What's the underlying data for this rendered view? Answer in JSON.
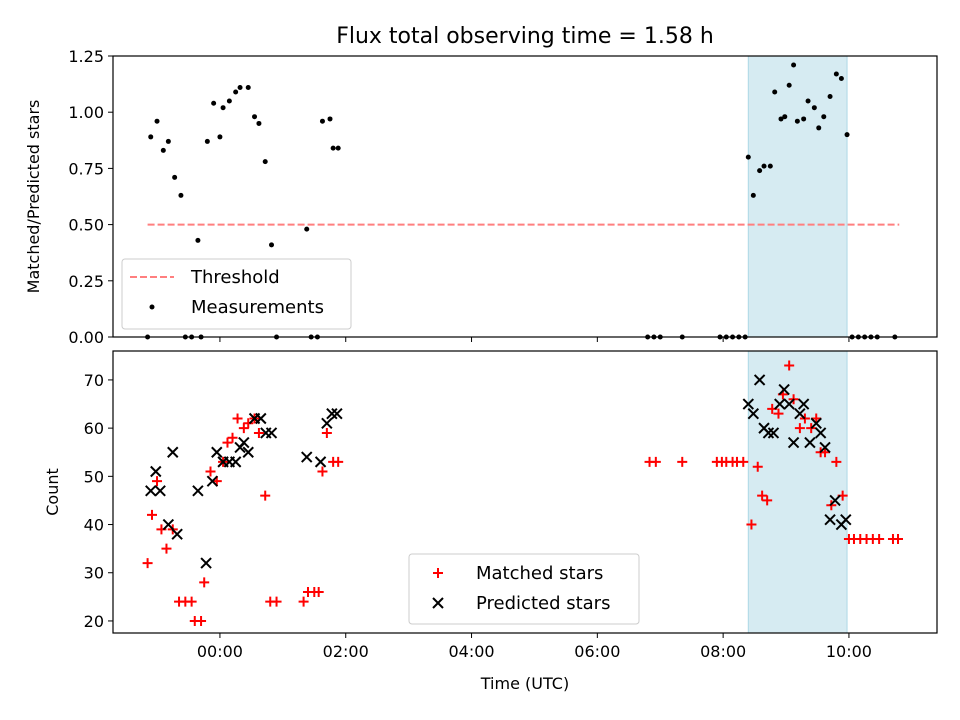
{
  "chart_data": [
    {
      "type": "scatter",
      "title": "Flux total observing time = 1.58 h",
      "ylabel": "Matched/Predicted stars",
      "xlabel": "",
      "x_unit": "hours (UTC), negative = before 00:00",
      "xlim": [
        -1.7,
        11.4
      ],
      "ylim": [
        0.0,
        1.25
      ],
      "yticks": [
        "0.00",
        "0.25",
        "0.50",
        "0.75",
        "1.00",
        "1.25"
      ],
      "threshold": {
        "name": "Threshold",
        "value": 0.5,
        "x_range": [
          -1.15,
          10.8
        ],
        "color": "#ff7f7f"
      },
      "highlight_span": [
        8.4,
        9.97
      ],
      "legend_position": "lower-left",
      "series": [
        {
          "name": "Measurements",
          "color": "#000000",
          "points": [
            [
              -1.15,
              0.0
            ],
            [
              -1.1,
              0.89
            ],
            [
              -1.0,
              0.96
            ],
            [
              -0.9,
              0.83
            ],
            [
              -0.82,
              0.87
            ],
            [
              -0.72,
              0.71
            ],
            [
              -0.62,
              0.63
            ],
            [
              -0.55,
              0.0
            ],
            [
              -0.45,
              0.0
            ],
            [
              -0.35,
              0.43
            ],
            [
              -0.3,
              0.0
            ],
            [
              -0.2,
              0.87
            ],
            [
              -0.1,
              1.04
            ],
            [
              0.0,
              0.89
            ],
            [
              0.05,
              1.02
            ],
            [
              0.15,
              1.05
            ],
            [
              0.25,
              1.09
            ],
            [
              0.32,
              1.11
            ],
            [
              0.45,
              1.11
            ],
            [
              0.55,
              0.98
            ],
            [
              0.62,
              0.95
            ],
            [
              0.72,
              0.78
            ],
            [
              0.82,
              0.41
            ],
            [
              0.9,
              0.0
            ],
            [
              1.38,
              0.48
            ],
            [
              1.45,
              0.0
            ],
            [
              1.55,
              0.0
            ],
            [
              1.63,
              0.96
            ],
            [
              1.75,
              0.97
            ],
            [
              1.8,
              0.84
            ],
            [
              1.88,
              0.84
            ],
            [
              6.8,
              0.0
            ],
            [
              6.9,
              0.0
            ],
            [
              7.0,
              0.0
            ],
            [
              7.35,
              0.0
            ],
            [
              7.95,
              0.0
            ],
            [
              8.05,
              0.0
            ],
            [
              8.15,
              0.0
            ],
            [
              8.25,
              0.0
            ],
            [
              8.35,
              0.0
            ],
            [
              8.4,
              0.8
            ],
            [
              8.48,
              0.63
            ],
            [
              8.58,
              0.74
            ],
            [
              8.65,
              0.76
            ],
            [
              8.75,
              0.76
            ],
            [
              8.82,
              1.09
            ],
            [
              8.92,
              0.97
            ],
            [
              8.98,
              0.98
            ],
            [
              9.05,
              1.12
            ],
            [
              9.12,
              1.21
            ],
            [
              9.18,
              0.96
            ],
            [
              9.28,
              0.97
            ],
            [
              9.35,
              1.05
            ],
            [
              9.45,
              1.02
            ],
            [
              9.52,
              0.93
            ],
            [
              9.6,
              0.98
            ],
            [
              9.7,
              1.07
            ],
            [
              9.8,
              1.17
            ],
            [
              9.88,
              1.15
            ],
            [
              9.97,
              0.9
            ],
            [
              10.05,
              0.0
            ],
            [
              10.15,
              0.0
            ],
            [
              10.25,
              0.0
            ],
            [
              10.35,
              0.0
            ],
            [
              10.45,
              0.0
            ],
            [
              10.73,
              0.0
            ]
          ]
        }
      ]
    },
    {
      "type": "scatter",
      "title": "",
      "ylabel": "Count",
      "xlabel": "Time (UTC)",
      "x_unit": "hours (UTC), negative = before 00:00",
      "xlim": [
        -1.7,
        11.4
      ],
      "ylim": [
        17.5,
        76
      ],
      "yticks": [
        "20",
        "30",
        "40",
        "50",
        "60",
        "70"
      ],
      "xticks": [
        {
          "value": 0,
          "label": "00:00"
        },
        {
          "value": 2,
          "label": "02:00"
        },
        {
          "value": 4,
          "label": "04:00"
        },
        {
          "value": 6,
          "label": "06:00"
        },
        {
          "value": 8,
          "label": "08:00"
        },
        {
          "value": 10,
          "label": "10:00"
        }
      ],
      "highlight_span": [
        8.4,
        9.97
      ],
      "legend_position": "lower-center",
      "series": [
        {
          "name": "Matched stars",
          "marker": "+",
          "color": "#ff0000",
          "points": [
            [
              -1.15,
              32
            ],
            [
              -1.08,
              42
            ],
            [
              -1.0,
              49
            ],
            [
              -0.93,
              39
            ],
            [
              -0.85,
              35
            ],
            [
              -0.75,
              39
            ],
            [
              -0.65,
              24
            ],
            [
              -0.55,
              24
            ],
            [
              -0.45,
              24
            ],
            [
              -0.4,
              20
            ],
            [
              -0.3,
              20
            ],
            [
              -0.25,
              28
            ],
            [
              -0.15,
              51
            ],
            [
              -0.05,
              49
            ],
            [
              0.05,
              53
            ],
            [
              0.12,
              57
            ],
            [
              0.2,
              58
            ],
            [
              0.28,
              62
            ],
            [
              0.38,
              60
            ],
            [
              0.45,
              61
            ],
            [
              0.55,
              62
            ],
            [
              0.62,
              59
            ],
            [
              0.72,
              46
            ],
            [
              0.8,
              24
            ],
            [
              0.9,
              24
            ],
            [
              1.33,
              24
            ],
            [
              1.4,
              26
            ],
            [
              1.5,
              26
            ],
            [
              1.57,
              26
            ],
            [
              1.63,
              51
            ],
            [
              1.7,
              59
            ],
            [
              1.8,
              53
            ],
            [
              1.88,
              53
            ],
            [
              6.83,
              53
            ],
            [
              6.93,
              53
            ],
            [
              7.35,
              53
            ],
            [
              7.9,
              53
            ],
            [
              7.98,
              53
            ],
            [
              8.05,
              53
            ],
            [
              8.15,
              53
            ],
            [
              8.22,
              53
            ],
            [
              8.32,
              53
            ],
            [
              8.45,
              40
            ],
            [
              8.55,
              52
            ],
            [
              8.62,
              46
            ],
            [
              8.7,
              45
            ],
            [
              8.78,
              64
            ],
            [
              8.88,
              63
            ],
            [
              8.95,
              67
            ],
            [
              9.05,
              73
            ],
            [
              9.12,
              66
            ],
            [
              9.22,
              60
            ],
            [
              9.3,
              62
            ],
            [
              9.4,
              60
            ],
            [
              9.48,
              62
            ],
            [
              9.55,
              55
            ],
            [
              9.62,
              55
            ],
            [
              9.72,
              44
            ],
            [
              9.8,
              53
            ],
            [
              9.9,
              46
            ],
            [
              10.0,
              37
            ],
            [
              10.08,
              37
            ],
            [
              10.18,
              37
            ],
            [
              10.28,
              37
            ],
            [
              10.38,
              37
            ],
            [
              10.48,
              37
            ],
            [
              10.7,
              37
            ],
            [
              10.78,
              37
            ]
          ]
        },
        {
          "name": "Predicted stars",
          "marker": "x",
          "color": "#000000",
          "points": [
            [
              -1.1,
              47
            ],
            [
              -1.02,
              51
            ],
            [
              -0.95,
              47
            ],
            [
              -0.82,
              40
            ],
            [
              -0.75,
              55
            ],
            [
              -0.68,
              38
            ],
            [
              -0.35,
              47
            ],
            [
              -0.22,
              32
            ],
            [
              -0.12,
              49
            ],
            [
              -0.05,
              55
            ],
            [
              0.05,
              53
            ],
            [
              0.15,
              53
            ],
            [
              0.25,
              53
            ],
            [
              0.32,
              56
            ],
            [
              0.38,
              57
            ],
            [
              0.45,
              55
            ],
            [
              0.55,
              62
            ],
            [
              0.65,
              62
            ],
            [
              0.73,
              59
            ],
            [
              0.82,
              59
            ],
            [
              1.38,
              54
            ],
            [
              1.6,
              53
            ],
            [
              1.7,
              61
            ],
            [
              1.78,
              63
            ],
            [
              1.86,
              63
            ],
            [
              8.4,
              65
            ],
            [
              8.48,
              63
            ],
            [
              8.58,
              70
            ],
            [
              8.65,
              60
            ],
            [
              8.72,
              59
            ],
            [
              8.8,
              59
            ],
            [
              8.9,
              65
            ],
            [
              8.97,
              68
            ],
            [
              9.05,
              65
            ],
            [
              9.12,
              57
            ],
            [
              9.22,
              63
            ],
            [
              9.28,
              65
            ],
            [
              9.38,
              57
            ],
            [
              9.48,
              61
            ],
            [
              9.55,
              59
            ],
            [
              9.62,
              56
            ],
            [
              9.7,
              41
            ],
            [
              9.78,
              45
            ],
            [
              9.88,
              40
            ],
            [
              9.95,
              41
            ]
          ]
        }
      ]
    }
  ]
}
